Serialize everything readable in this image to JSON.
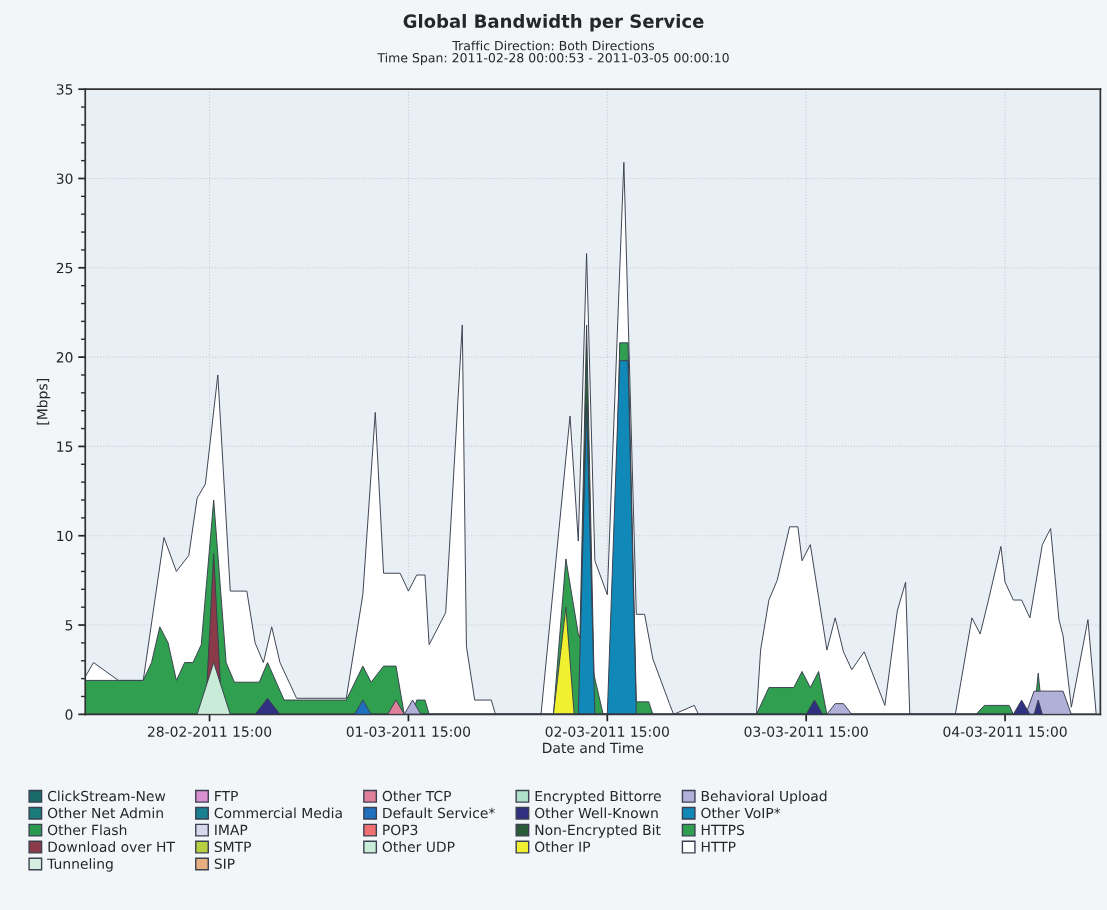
{
  "chart_data": {
    "type": "area",
    "title": "Global Bandwidth per Service",
    "subtitle": "Traffic Direction: Both Directions\nTime Span: 2011-02-28 00:00:53 - 2011-03-05 00:00:10",
    "xlabel": "Date and Time",
    "ylabel": "[Mbps]",
    "xlim": [
      "2011-02-28T00:00",
      "2011-03-05T02:30"
    ],
    "xticks": [
      {
        "value": "2011-02-28T15:00",
        "label": "28-02-2011 15:00"
      },
      {
        "value": "2011-03-01T15:00",
        "label": "01-03-2011 15:00"
      },
      {
        "value": "2011-03-02T15:00",
        "label": "02-03-2011 15:00"
      },
      {
        "value": "2011-03-03T15:00",
        "label": "03-03-2011 15:00"
      },
      {
        "value": "2011-03-04T15:00",
        "label": "04-03-2011 15:00"
      }
    ],
    "ylim": [
      0,
      35
    ],
    "yticks": [
      0,
      5,
      10,
      15,
      20,
      25,
      30,
      35
    ],
    "grid": true,
    "legend": "bottom",
    "series": [
      {
        "name": "ClickStream-New",
        "color": "#1a6a6a"
      },
      {
        "name": "Other Net Admin",
        "color": "#1b7a7a"
      },
      {
        "name": "Other Flash",
        "color": "#2a9a50"
      },
      {
        "name": "Download over HT",
        "color": "#8b3a4a",
        "x": [
          "2011-02-28T14:30",
          "2011-02-28T15:30",
          "2011-02-28T16:30"
        ],
        "values": [
          0,
          9.0,
          0
        ]
      },
      {
        "name": "Tunneling",
        "color": "#d8efe0"
      },
      {
        "name": "FTP",
        "color": "#d890d0"
      },
      {
        "name": "Commercial Media",
        "color": "#1a7f8f"
      },
      {
        "name": "IMAP",
        "color": "#d8d8ec"
      },
      {
        "name": "SMTP",
        "color": "#b8d040"
      },
      {
        "name": "SIP",
        "color": "#e8b080"
      },
      {
        "name": "Other TCP",
        "color": "#e0809a",
        "x": [
          "2011-03-01T12:30",
          "2011-03-01T13:30",
          "2011-03-01T14:30"
        ],
        "values": [
          0,
          0.8,
          0
        ]
      },
      {
        "name": "Default Service*",
        "color": "#2070c0",
        "x": [
          "2011-03-01T08:30",
          "2011-03-01T09:30",
          "2011-03-01T10:30"
        ],
        "values": [
          0,
          0.8,
          0
        ]
      },
      {
        "name": "POP3",
        "color": "#f07070"
      },
      {
        "name": "Other UDP",
        "color": "#c8ecd8",
        "x": [
          "2011-02-28T13:30",
          "2011-02-28T15:30",
          "2011-02-28T17:30"
        ],
        "values": [
          0,
          2.9,
          0
        ]
      },
      {
        "name": "Encrypted Bittorre",
        "color": "#b0e0c8"
      },
      {
        "name": "Other Well-Known",
        "color": "#303080",
        "x": [
          "2011-02-28T20:30",
          "2011-02-28T22:00",
          "2011-02-28T23:30",
          "2011-03-03T15:00",
          "2011-03-03T16:00",
          "2011-03-03T17:00",
          "2011-03-04T16:00",
          "2011-03-04T17:00",
          "2011-03-04T18:00",
          "2011-03-04T18:30",
          "2011-03-04T19:00",
          "2011-03-04T19:30"
        ],
        "values": [
          0,
          0.9,
          0,
          0,
          0.8,
          0,
          0,
          0.8,
          0,
          0,
          0.8,
          0
        ]
      },
      {
        "name": "Non-Encrypted Bit",
        "color": "#2a5a3a",
        "x": [
          "2011-03-02T11:30",
          "2011-03-02T12:30",
          "2011-03-02T13:30"
        ],
        "values": [
          0,
          21.8,
          0
        ]
      },
      {
        "name": "Other IP",
        "color": "#f0f030",
        "x": [
          "2011-03-02T08:30",
          "2011-03-02T10:00",
          "2011-03-02T11:00"
        ],
        "values": [
          0,
          6.0,
          0
        ]
      },
      {
        "name": "Behavioral Upload",
        "color": "#b0b0d8",
        "x": [
          "2011-03-01T14:30",
          "2011-03-01T15:30",
          "2011-03-01T16:30",
          "2011-03-03T17:30",
          "2011-03-03T18:30",
          "2011-03-03T19:30",
          "2011-03-03T20:30",
          "2011-03-04T17:30",
          "2011-03-04T18:30",
          "2011-03-04T22:00",
          "2011-03-04T23:00"
        ],
        "values": [
          0,
          0.8,
          0,
          0,
          0.6,
          0.6,
          0,
          0,
          1.3,
          1.3,
          0
        ]
      },
      {
        "name": "Other VoIP*",
        "color": "#1088b8",
        "x": [
          "2011-03-02T11:30",
          "2011-03-02T12:30",
          "2011-03-02T13:30",
          "2011-03-02T15:00",
          "2011-03-02T16:30",
          "2011-03-02T17:30",
          "2011-03-02T18:30"
        ],
        "values": [
          0,
          17.3,
          0,
          0,
          19.8,
          19.8,
          0
        ]
      },
      {
        "name": "HTTPS",
        "color": "#30a050",
        "x": [
          "2011-02-28T00:00",
          "2011-02-28T07:00",
          "2011-02-28T08:00",
          "2011-02-28T09:00",
          "2011-02-28T10:00",
          "2011-02-28T11:00",
          "2011-02-28T12:00",
          "2011-02-28T13:00",
          "2011-02-28T14:00",
          "2011-02-28T15:30",
          "2011-02-28T17:00",
          "2011-02-28T18:00",
          "2011-02-28T21:00",
          "2011-02-28T22:00",
          "2011-03-01T00:00",
          "2011-03-01T07:30",
          "2011-03-01T09:30",
          "2011-03-01T10:30",
          "2011-03-01T12:00",
          "2011-03-01T13:30",
          "2011-03-01T14:30",
          "2011-03-01T15:30",
          "2011-03-01T16:00",
          "2011-03-01T17:00",
          "2011-03-01T17:30",
          "2011-03-02T08:30",
          "2011-03-02T10:00",
          "2011-03-02T11:30",
          "2011-03-02T13:00",
          "2011-03-02T14:30",
          "2011-03-02T15:30",
          "2011-03-02T16:30",
          "2011-03-02T17:30",
          "2011-03-02T18:30",
          "2011-03-02T20:00",
          "2011-03-02T20:30",
          "2011-03-03T09:00",
          "2011-03-03T10:30",
          "2011-03-03T13:30",
          "2011-03-03T14:30",
          "2011-03-03T15:30",
          "2011-03-03T16:30",
          "2011-03-03T17:30",
          "2011-03-04T11:30",
          "2011-03-04T12:30",
          "2011-03-04T15:30",
          "2011-03-04T16:00",
          "2011-03-04T18:30",
          "2011-03-04T19:00",
          "2011-03-04T19:30",
          "2011-03-05T02:00"
        ],
        "values": [
          1.9,
          1.9,
          2.9,
          4.9,
          4.0,
          1.9,
          2.9,
          2.9,
          3.9,
          12.0,
          2.9,
          1.8,
          1.8,
          2.9,
          0.8,
          0.8,
          2.7,
          1.8,
          2.7,
          2.7,
          0,
          0,
          0.8,
          0.8,
          0,
          0,
          8.7,
          4.5,
          3.0,
          0,
          0,
          20.8,
          20.8,
          0.7,
          0.7,
          0,
          0,
          1.5,
          1.5,
          2.4,
          1.5,
          2.4,
          0,
          0,
          0.5,
          0.5,
          0,
          0,
          2.3,
          0,
          0
        ]
      },
      {
        "name": "HTTP",
        "color": "#ffffff",
        "x": [
          "2011-02-28T00:00",
          "2011-02-28T01:00",
          "2011-02-28T04:00",
          "2011-02-28T07:00",
          "2011-02-28T09:30",
          "2011-02-28T11:00",
          "2011-02-28T12:30",
          "2011-02-28T13:30",
          "2011-02-28T14:30",
          "2011-02-28T16:00",
          "2011-02-28T17:30",
          "2011-02-28T19:30",
          "2011-02-28T20:30",
          "2011-02-28T21:30",
          "2011-02-28T22:30",
          "2011-02-28T23:30",
          "2011-03-01T01:30",
          "2011-03-01T07:30",
          "2011-03-01T09:30",
          "2011-03-01T11:00",
          "2011-03-01T12:00",
          "2011-03-01T14:00",
          "2011-03-01T15:00",
          "2011-03-01T16:00",
          "2011-03-01T17:00",
          "2011-03-01T17:30",
          "2011-03-01T19:30",
          "2011-03-01T21:30",
          "2011-03-01T22:00",
          "2011-03-01T23:00",
          "2011-03-02T01:00",
          "2011-03-02T01:30",
          "2011-03-02T07:00",
          "2011-03-02T10:30",
          "2011-03-02T11:30",
          "2011-03-02T12:30",
          "2011-03-02T13:30",
          "2011-03-02T15:00",
          "2011-03-02T17:00",
          "2011-03-02T18:30",
          "2011-03-02T19:30",
          "2011-03-02T20:30",
          "2011-03-02T22:30",
          "2011-03-02T23:00",
          "2011-03-03T01:30",
          "2011-03-03T02:00",
          "2011-03-03T09:00",
          "2011-03-03T09:30",
          "2011-03-03T10:30",
          "2011-03-03T11:30",
          "2011-03-03T13:00",
          "2011-03-03T14:00",
          "2011-03-03T14:30",
          "2011-03-03T15:30",
          "2011-03-03T17:30",
          "2011-03-03T18:30",
          "2011-03-03T19:30",
          "2011-03-03T20:30",
          "2011-03-03T22:00",
          "2011-03-04T00:30",
          "2011-03-04T02:00",
          "2011-03-04T03:00",
          "2011-03-04T03:30",
          "2011-03-04T09:00",
          "2011-03-04T11:00",
          "2011-03-04T12:00",
          "2011-03-04T13:00",
          "2011-03-04T14:30",
          "2011-03-04T15:00",
          "2011-03-04T16:00",
          "2011-03-04T17:00",
          "2011-03-04T18:00",
          "2011-03-04T19:30",
          "2011-03-04T20:30",
          "2011-03-04T21:30",
          "2011-03-04T22:00",
          "2011-03-04T23:00",
          "2011-03-05T01:00",
          "2011-03-05T02:00"
        ],
        "values": [
          2.1,
          2.9,
          1.9,
          1.9,
          9.9,
          8.0,
          8.9,
          12.1,
          12.9,
          19.0,
          6.9,
          6.9,
          4.0,
          2.9,
          4.9,
          2.9,
          0.9,
          0.9,
          6.7,
          16.9,
          7.9,
          7.9,
          6.9,
          7.8,
          7.8,
          3.9,
          5.7,
          21.8,
          3.8,
          0.8,
          0.8,
          0,
          0,
          16.7,
          9.7,
          25.8,
          8.6,
          6.7,
          30.9,
          5.6,
          5.6,
          3.1,
          0.6,
          0,
          0.5,
          0,
          0,
          3.6,
          6.4,
          7.5,
          10.5,
          10.5,
          8.6,
          9.5,
          3.6,
          5.4,
          3.5,
          2.5,
          3.5,
          0.5,
          5.8,
          7.4,
          0,
          0,
          5.4,
          4.5,
          6.4,
          9.4,
          7.4,
          6.4,
          6.4,
          5.4,
          9.5,
          10.4,
          5.3,
          4.4,
          0.4,
          5.3,
          0
        ]
      }
    ]
  }
}
